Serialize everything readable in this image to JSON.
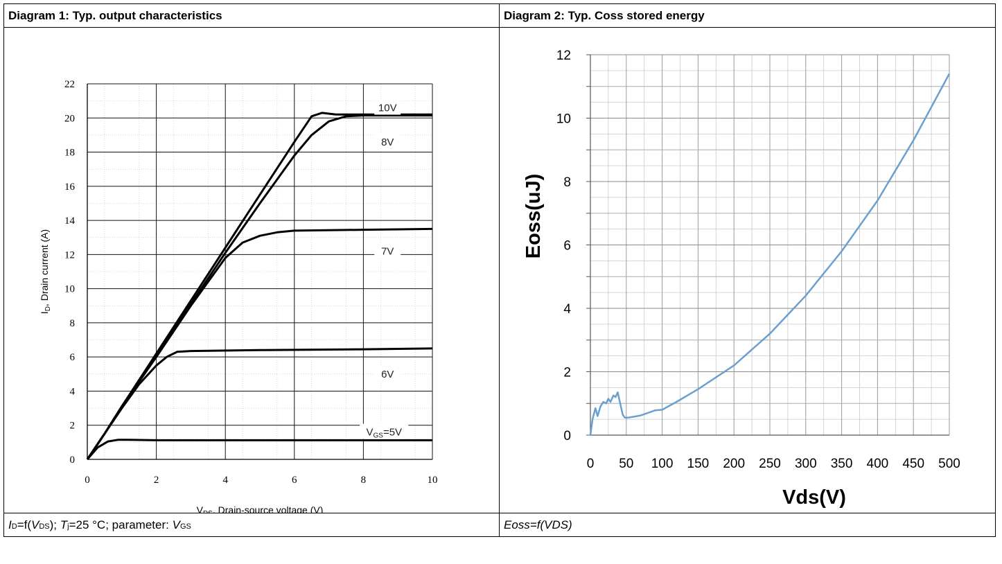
{
  "diagram1": {
    "title": "Diagram 1: Typ. output characteristics",
    "caption": {
      "p1": "I",
      "p1_sub": "D",
      "p2": "=f(",
      "p3": "V",
      "p3_sub": "DS",
      "p4": "); ",
      "p5": "T",
      "p5_sub": "j",
      "p6": "=25 °C; parameter: ",
      "p7": "V",
      "p7_sub": "GS"
    }
  },
  "diagram2": {
    "title": "Diagram 2: Typ. Coss stored energy",
    "caption": "Eoss=f(VDS)"
  },
  "chart_data": [
    {
      "type": "line",
      "ylabel_prefix": "I",
      "ylabel_sub": "D",
      "ylabel_rest": ", Drain current (A)",
      "xlabel_prefix": "V",
      "xlabel_sub": "DS",
      "xlabel_rest": ", Drain-source voltage (V)",
      "xlim": [
        0,
        10
      ],
      "ylim": [
        0,
        22
      ],
      "xticks": [
        "0",
        "2",
        "4",
        "6",
        "8",
        "10"
      ],
      "yticks": [
        "0",
        "2",
        "4",
        "6",
        "8",
        "10",
        "12",
        "14",
        "16",
        "18",
        "20",
        "22"
      ],
      "grid": true,
      "series": [
        {
          "name": "10V",
          "x": [
            0,
            0.5,
            1,
            2,
            3,
            4,
            5,
            6,
            6.5,
            6.8,
            7.2,
            8,
            10
          ],
          "y": [
            0,
            1.5,
            3.1,
            6.2,
            9.3,
            12.4,
            15.5,
            18.6,
            20.1,
            20.3,
            20.2,
            20.2,
            20.2
          ]
        },
        {
          "name": "8V",
          "x": [
            0,
            0.5,
            1,
            2,
            3,
            4,
            5,
            6,
            6.5,
            7,
            7.5,
            8,
            10
          ],
          "y": [
            0,
            1.5,
            3.1,
            6.1,
            9.1,
            12.1,
            15.0,
            17.8,
            19.0,
            19.8,
            20.1,
            20.15,
            20.15
          ]
        },
        {
          "name": "7V",
          "x": [
            0,
            0.5,
            1,
            2,
            3,
            4,
            4.5,
            5,
            5.5,
            6,
            8,
            10
          ],
          "y": [
            0,
            1.5,
            3.1,
            6.0,
            9.0,
            11.8,
            12.7,
            13.1,
            13.3,
            13.4,
            13.45,
            13.5
          ]
        },
        {
          "name": "6V",
          "x": [
            0,
            0.5,
            1,
            1.5,
            2,
            2.3,
            2.6,
            3,
            5,
            8,
            10
          ],
          "y": [
            0,
            1.5,
            3.0,
            4.4,
            5.5,
            6.0,
            6.3,
            6.35,
            6.4,
            6.45,
            6.5
          ]
        },
        {
          "name": "V_GS=5V",
          "x": [
            0,
            0.3,
            0.6,
            0.9,
            1.2,
            2,
            3,
            5,
            10
          ],
          "y": [
            0,
            0.7,
            1.05,
            1.15,
            1.15,
            1.12,
            1.12,
            1.12,
            1.12
          ]
        }
      ],
      "series_labels": [
        {
          "text": "10V",
          "x": 8.7,
          "y": 20.6
        },
        {
          "text": "8V",
          "x": 8.7,
          "y": 18.6
        },
        {
          "text": "7V",
          "x": 8.7,
          "y": 12.2
        },
        {
          "text": "6V",
          "x": 8.7,
          "y": 5.0
        },
        {
          "text": "V",
          "sub": "GS",
          "rest": "=5V",
          "x": 8.6,
          "y": 1.6
        }
      ],
      "color": "#000000"
    },
    {
      "type": "line",
      "ylabel": "Eoss(uJ)",
      "xlabel": "Vds(V)",
      "xlim": [
        0,
        500
      ],
      "ylim": [
        0,
        12
      ],
      "xticks": [
        "0",
        "50",
        "100",
        "150",
        "200",
        "250",
        "300",
        "350",
        "400",
        "450",
        "500"
      ],
      "yticks": [
        "0",
        "2",
        "4",
        "6",
        "8",
        "10",
        "12"
      ],
      "grid": true,
      "series": [
        {
          "x": [
            0,
            3,
            7,
            10,
            14,
            18,
            22,
            25,
            28,
            32,
            35,
            38,
            42,
            45,
            48,
            52,
            60,
            70,
            80,
            90,
            100,
            120,
            150,
            200,
            250,
            300,
            350,
            400,
            450,
            500
          ],
          "y": [
            0,
            0.5,
            0.85,
            0.6,
            0.9,
            1.05,
            1.0,
            1.15,
            1.05,
            1.25,
            1.2,
            1.35,
            0.95,
            0.65,
            0.55,
            0.55,
            0.58,
            0.62,
            0.7,
            0.78,
            0.8,
            1.05,
            1.45,
            2.2,
            3.2,
            4.4,
            5.8,
            7.4,
            9.3,
            11.4
          ]
        }
      ],
      "color": "#6a9fcf"
    }
  ]
}
